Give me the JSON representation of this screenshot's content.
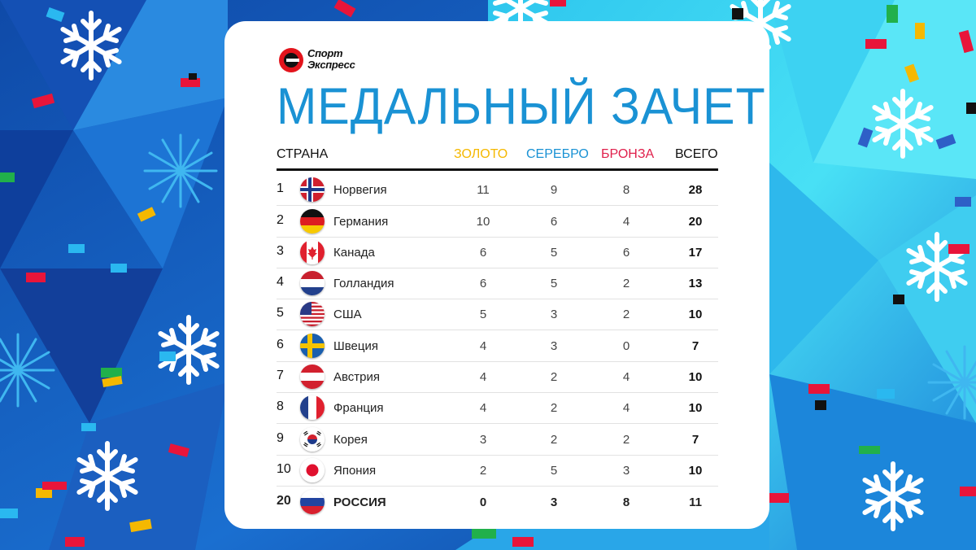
{
  "brand": {
    "line1": "Спорт",
    "line2": "Экспресс"
  },
  "title": "МЕДАЛЬНЫЙ ЗАЧЕТ",
  "columns": {
    "country": "СТРАНА",
    "gold": "ЗОЛОТО",
    "silver": "СЕРЕБРО",
    "bronze": "БРОНЗА",
    "total": "ВСЕГО"
  },
  "colors": {
    "title": "#1a92d4",
    "gold": "#f5b800",
    "silver": "#1a92d4",
    "bronze": "#e0204c",
    "background": "#1a66c4"
  },
  "rows": [
    {
      "rank": "1",
      "flag": "norway-flag-icon",
      "country": "Норвегия",
      "gold": "11",
      "silver": "9",
      "bronze": "8",
      "total": "28"
    },
    {
      "rank": "2",
      "flag": "germany-flag-icon",
      "country": "Германия",
      "gold": "10",
      "silver": "6",
      "bronze": "4",
      "total": "20"
    },
    {
      "rank": "3",
      "flag": "canada-flag-icon",
      "country": "Канада",
      "gold": "6",
      "silver": "5",
      "bronze": "6",
      "total": "17"
    },
    {
      "rank": "4",
      "flag": "netherlands-flag-icon",
      "country": "Голландия",
      "gold": "6",
      "silver": "5",
      "bronze": "2",
      "total": "13"
    },
    {
      "rank": "5",
      "flag": "usa-flag-icon",
      "country": "США",
      "gold": "5",
      "silver": "3",
      "bronze": "2",
      "total": "10"
    },
    {
      "rank": "6",
      "flag": "sweden-flag-icon",
      "country": "Швеция",
      "gold": "4",
      "silver": "3",
      "bronze": "0",
      "total": "7"
    },
    {
      "rank": "7",
      "flag": "austria-flag-icon",
      "country": "Австрия",
      "gold": "4",
      "silver": "2",
      "bronze": "4",
      "total": "10"
    },
    {
      "rank": "8",
      "flag": "france-flag-icon",
      "country": "Франция",
      "gold": "4",
      "silver": "2",
      "bronze": "4",
      "total": "10"
    },
    {
      "rank": "9",
      "flag": "korea-flag-icon",
      "country": "Корея",
      "gold": "3",
      "silver": "2",
      "bronze": "2",
      "total": "7"
    },
    {
      "rank": "10",
      "flag": "japan-flag-icon",
      "country": "Япония",
      "gold": "2",
      "silver": "5",
      "bronze": "3",
      "total": "10"
    },
    {
      "rank": "20",
      "flag": "russia-flag-icon",
      "country": "РОССИЯ",
      "gold": "0",
      "silver": "3",
      "bronze": "8",
      "total": "11"
    }
  ]
}
